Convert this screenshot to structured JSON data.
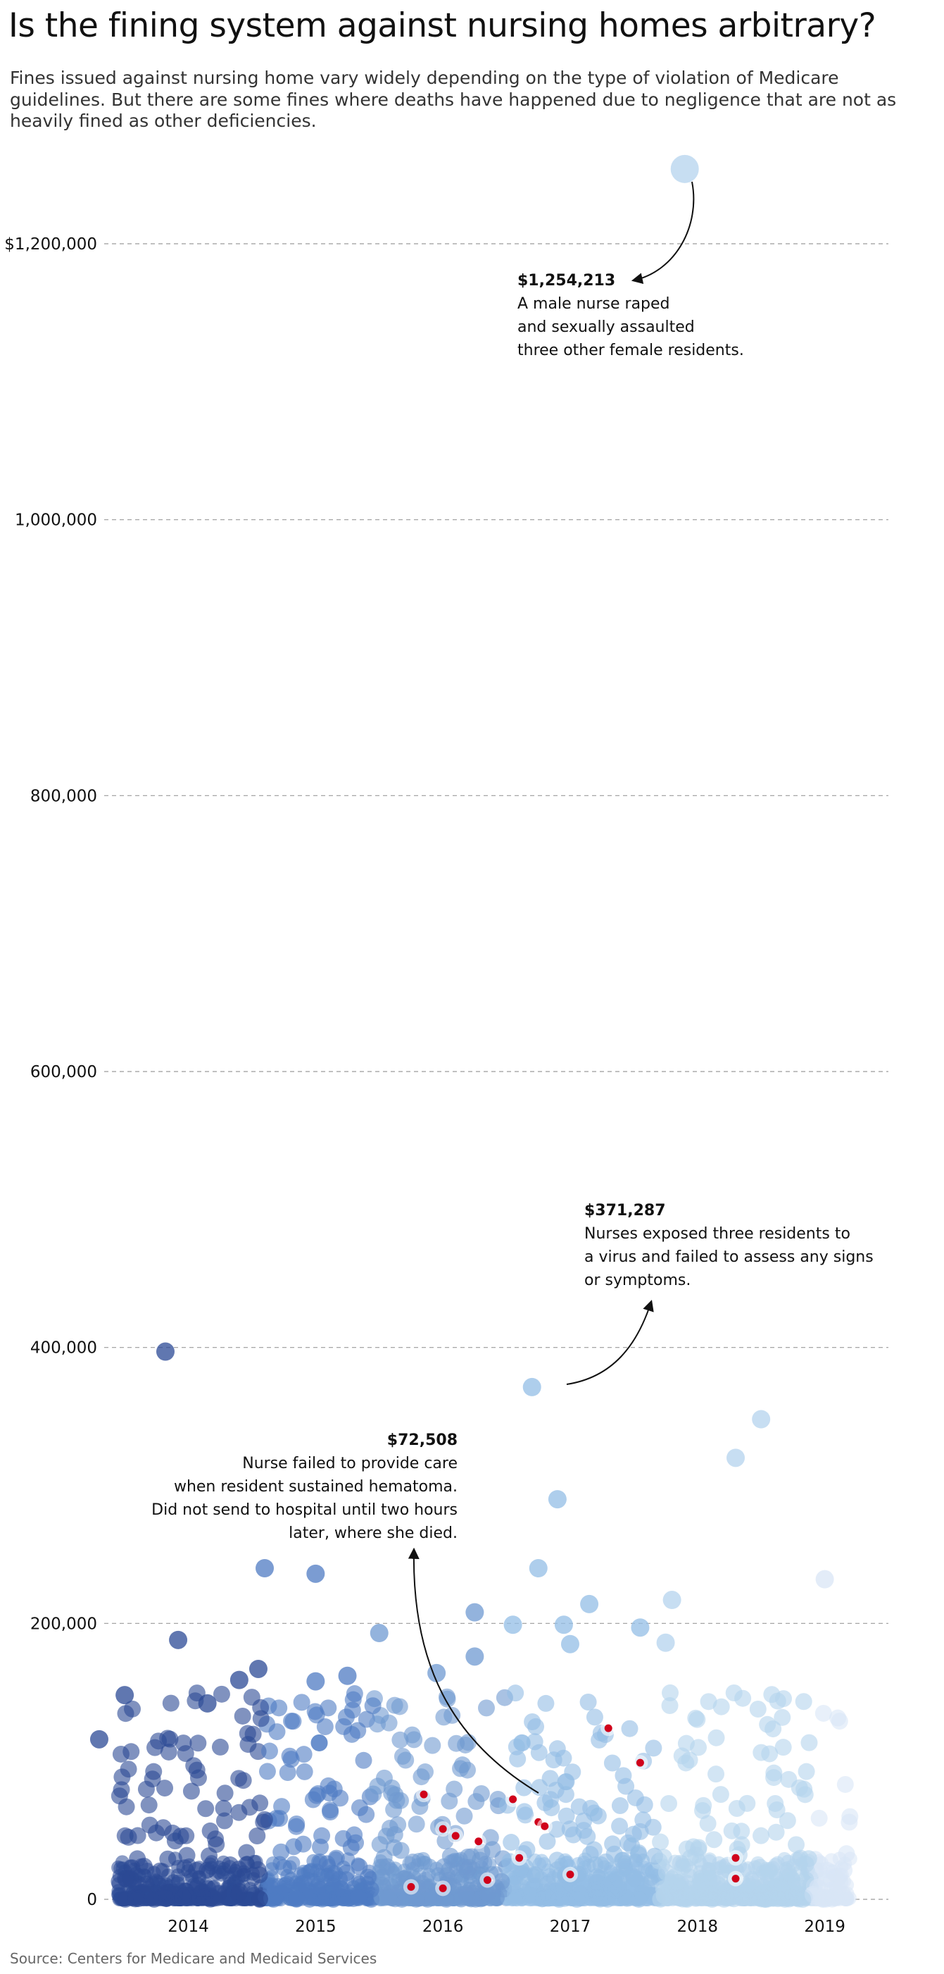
{
  "title": "Is the fining system against nursing homes arbitrary?",
  "subtitle": "Fines issued against nursing home vary widely depending on the type of violation of Medicare guidelines. But there are some fines where deaths have happened due to negligence that are not as heavily fined as other deficiencies.",
  "source": "Source: Centers for Medicare and Medicaid Services",
  "colors": {
    "2013": "#27448f",
    "2014": "#2b4a95",
    "2015": "#4f7bc3",
    "2016": "#6f9ad1",
    "2017": "#93bde5",
    "2018": "#b4d3ed",
    "2019": "#d9e6f6",
    "death_highlight": "#d0021b",
    "grid": "#9a9a9a"
  },
  "chart_data": {
    "type": "scatter",
    "title": "",
    "xlabel": "",
    "ylabel": "",
    "ylim": [
      0,
      1300000
    ],
    "grid": true,
    "y_ticks": [
      {
        "value": 0,
        "label": "0"
      },
      {
        "value": 200000,
        "label": "200,000"
      },
      {
        "value": 400000,
        "label": "400,000"
      },
      {
        "value": 600000,
        "label": "600,000"
      },
      {
        "value": 800000,
        "label": "800,000"
      },
      {
        "value": 1000000,
        "label": "1,000,000"
      },
      {
        "value": 1200000,
        "label": "$1,200,000"
      }
    ],
    "x_ticks": [
      {
        "value": 2014.0,
        "label": "2014"
      },
      {
        "value": 2015.0,
        "label": "2015"
      },
      {
        "value": 2016.0,
        "label": "2016"
      },
      {
        "value": 2017.0,
        "label": "2017"
      },
      {
        "value": 2018.0,
        "label": "2018"
      },
      {
        "value": 2019.0,
        "label": "2019"
      }
    ],
    "xlim": [
      2013.35,
      2019.5
    ],
    "highlight_points": [
      {
        "x": 2013.82,
        "y": 397000
      },
      {
        "x": 2014.6,
        "y": 240000
      },
      {
        "x": 2015.0,
        "y": 236000
      },
      {
        "x": 2015.5,
        "y": 193000
      },
      {
        "x": 2016.25,
        "y": 208000
      },
      {
        "x": 2016.7,
        "y": 371287
      },
      {
        "x": 2016.75,
        "y": 240000
      },
      {
        "x": 2016.9,
        "y": 290000
      },
      {
        "x": 2017.15,
        "y": 214000
      },
      {
        "x": 2017.8,
        "y": 217000
      },
      {
        "x": 2018.3,
        "y": 320000
      },
      {
        "x": 2018.5,
        "y": 348000
      },
      {
        "x": 2019.0,
        "y": 232000
      },
      {
        "x": 2017.9,
        "y": 1254213
      },
      {
        "x": 2013.3,
        "y": 116000
      },
      {
        "x": 2013.5,
        "y": 148000
      },
      {
        "x": 2013.92,
        "y": 188000
      },
      {
        "x": 2014.15,
        "y": 142000
      },
      {
        "x": 2014.4,
        "y": 159000
      },
      {
        "x": 2014.55,
        "y": 167000
      },
      {
        "x": 2015.0,
        "y": 158000
      },
      {
        "x": 2015.25,
        "y": 162000
      },
      {
        "x": 2015.95,
        "y": 164000
      },
      {
        "x": 2016.25,
        "y": 176000
      },
      {
        "x": 2016.55,
        "y": 199000
      },
      {
        "x": 2016.95,
        "y": 199000
      },
      {
        "x": 2017.0,
        "y": 185000
      },
      {
        "x": 2017.55,
        "y": 197000
      },
      {
        "x": 2017.75,
        "y": 186000
      }
    ],
    "death_points": [
      {
        "x": 2015.85,
        "y": 76000
      },
      {
        "x": 2016.0,
        "y": 51000
      },
      {
        "x": 2016.1,
        "y": 46000
      },
      {
        "x": 2016.28,
        "y": 42000
      },
      {
        "x": 2016.55,
        "y": 72508
      },
      {
        "x": 2016.75,
        "y": 56000
      },
      {
        "x": 2016.8,
        "y": 53000
      },
      {
        "x": 2017.3,
        "y": 124000
      },
      {
        "x": 2017.55,
        "y": 99000
      },
      {
        "x": 2016.6,
        "y": 30000
      },
      {
        "x": 2016.35,
        "y": 14000
      },
      {
        "x": 2016.0,
        "y": 8000
      },
      {
        "x": 2015.75,
        "y": 9000
      },
      {
        "x": 2017.0,
        "y": 18000
      },
      {
        "x": 2018.3,
        "y": 30000
      },
      {
        "x": 2018.3,
        "y": 15000
      }
    ],
    "annotations": [
      {
        "value": "$1,254,213",
        "text": [
          "A male nurse raped",
          "and sexually assaulted",
          "three other female residents."
        ]
      },
      {
        "value": "$371,287",
        "text": [
          "Nurses exposed three residents to",
          "a virus and failed to assess any signs",
          "or symptoms."
        ]
      },
      {
        "value": "$72,508",
        "text": [
          "Nurse failed to provide care",
          "when resident sustained hematoma.",
          "Did not send to hospital until two hours",
          "later, where she died."
        ]
      }
    ]
  }
}
